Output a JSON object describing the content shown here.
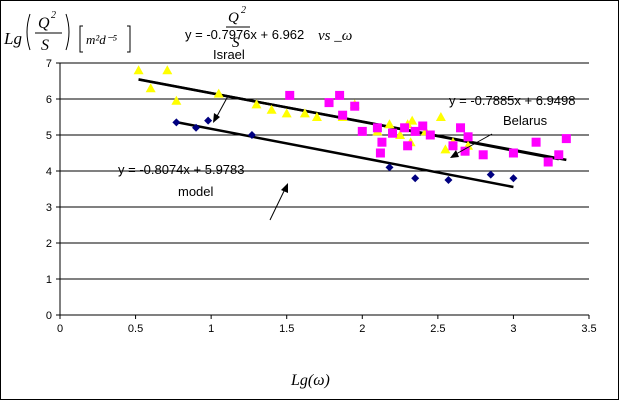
{
  "chart_data": {
    "type": "scatter",
    "x_axis": {
      "label": "Lg(ω)",
      "range": [
        0,
        3.5
      ],
      "ticks": [
        "0",
        "0.5",
        "1",
        "1.5",
        "2",
        "2.5",
        "3",
        "3.5"
      ]
    },
    "y_axis": {
      "label_main": "Lg",
      "label_numerator": "Q",
      "label_numerator_exp": "2",
      "label_denominator": "S",
      "label_units": "m²d⁻⁵",
      "range": [
        0,
        7
      ],
      "ticks": [
        "0",
        "1",
        "2",
        "3",
        "4",
        "5",
        "6",
        "7"
      ]
    },
    "overlay_text": {
      "fraction_numerator": "Q",
      "fraction_numerator_exp": "2",
      "fraction_denominator": "S",
      "suffix": "vs _ω"
    },
    "grid": "horizontal",
    "series": [
      {
        "name": "Israel",
        "marker": "triangle",
        "color": "#ffff00",
        "points": [
          [
            0.52,
            6.8
          ],
          [
            0.6,
            6.3
          ],
          [
            0.71,
            6.8
          ],
          [
            0.77,
            5.95
          ],
          [
            1.05,
            6.15
          ],
          [
            1.3,
            5.85
          ],
          [
            1.4,
            5.7
          ],
          [
            1.5,
            5.6
          ],
          [
            1.62,
            5.6
          ],
          [
            1.7,
            5.5
          ],
          [
            1.87,
            5.5
          ],
          [
            1.95,
            5.85
          ],
          [
            2.1,
            5.1
          ],
          [
            2.18,
            5.3
          ],
          [
            2.25,
            5.0
          ],
          [
            2.3,
            5.3
          ],
          [
            2.32,
            4.8
          ],
          [
            2.33,
            5.4
          ],
          [
            2.42,
            5.1
          ],
          [
            2.52,
            5.5
          ],
          [
            2.55,
            4.6
          ],
          [
            2.6,
            4.8
          ],
          [
            2.7,
            4.7
          ]
        ],
        "trendline": {
          "equation": "y = -0.7976x + 6.962",
          "slope": -0.7976,
          "intercept": 6.962,
          "x_range": [
            0.52,
            3.3
          ]
        },
        "annotation": "Israel"
      },
      {
        "name": "Belarus",
        "marker": "square",
        "color": "#ff00ff",
        "points": [
          [
            1.52,
            6.1
          ],
          [
            1.78,
            5.9
          ],
          [
            1.85,
            6.1
          ],
          [
            1.87,
            5.55
          ],
          [
            1.95,
            5.8
          ],
          [
            2.0,
            5.1
          ],
          [
            2.1,
            5.2
          ],
          [
            2.13,
            4.8
          ],
          [
            2.12,
            4.5
          ],
          [
            2.2,
            5.05
          ],
          [
            2.28,
            5.2
          ],
          [
            2.3,
            4.7
          ],
          [
            2.35,
            5.1
          ],
          [
            2.4,
            5.25
          ],
          [
            2.45,
            5.0
          ],
          [
            2.6,
            4.7
          ],
          [
            2.65,
            5.2
          ],
          [
            2.7,
            4.95
          ],
          [
            2.68,
            4.55
          ],
          [
            2.8,
            4.45
          ],
          [
            3.0,
            4.5
          ],
          [
            3.15,
            4.8
          ],
          [
            3.23,
            4.25
          ],
          [
            3.3,
            4.45
          ],
          [
            3.35,
            4.9
          ]
        ],
        "trendline": {
          "equation": "y = -0.7885x + 6.9498",
          "slope": -0.7885,
          "intercept": 6.9498,
          "x_range": [
            0.52,
            3.35
          ]
        },
        "annotation": "Belarus"
      },
      {
        "name": "model",
        "marker": "diamond",
        "color": "#000080",
        "points": [
          [
            0.77,
            5.35
          ],
          [
            0.9,
            5.2
          ],
          [
            0.98,
            5.4
          ],
          [
            1.27,
            5.0
          ],
          [
            2.18,
            4.1
          ],
          [
            2.35,
            3.8
          ],
          [
            2.57,
            3.75
          ],
          [
            2.85,
            3.9
          ],
          [
            3.0,
            3.8
          ]
        ],
        "trendline": {
          "equation": "y = -0.8074x + 5.9783",
          "slope": -0.8074,
          "intercept": 5.9783,
          "x_range": [
            0.77,
            3.0
          ]
        },
        "annotation": "model"
      }
    ]
  }
}
